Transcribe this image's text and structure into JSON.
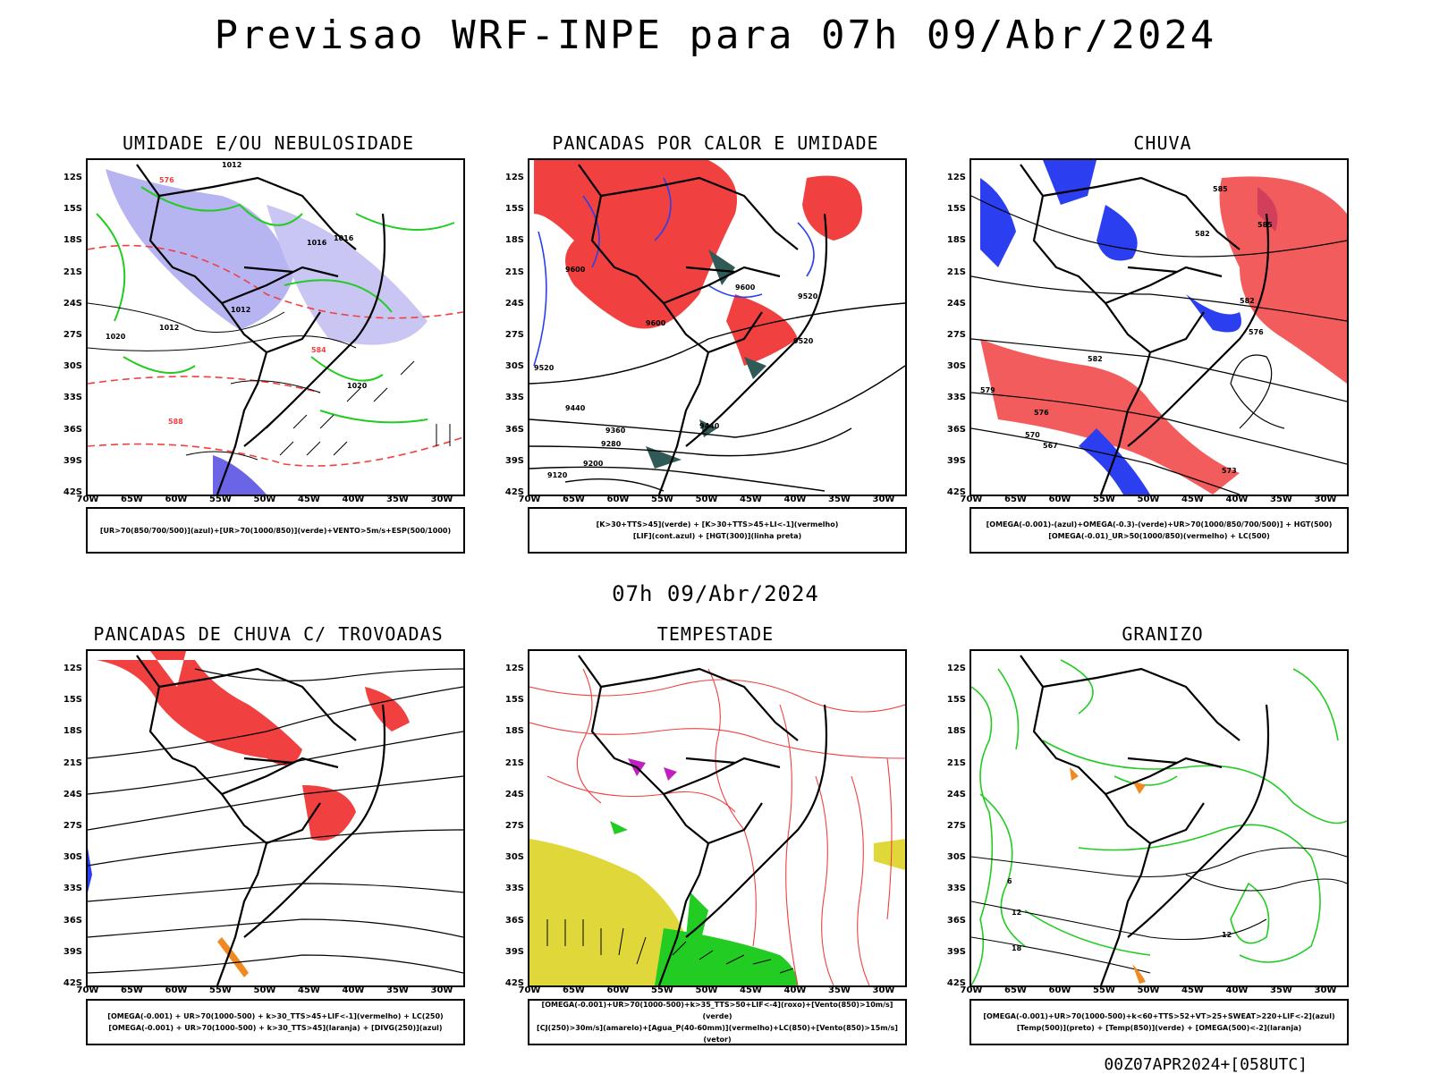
{
  "main_title": "Previsao WRF-INPE  para 07h 09/Abr/2024",
  "mid_label": "07h 09/Abr/2024",
  "footer": "00Z07APR2024+[058UTC]",
  "lat_ticks": [
    "12S",
    "15S",
    "18S",
    "21S",
    "24S",
    "27S",
    "30S",
    "33S",
    "36S",
    "39S",
    "42S"
  ],
  "lon_ticks": [
    "70W",
    "65W",
    "60W",
    "55W",
    "50W",
    "45W",
    "40W",
    "35W",
    "30W"
  ],
  "panels": [
    {
      "title": "UMIDADE E/OU NEBULOSIDADE",
      "legend": [
        "[UR>70(850/700/500)](azul)+[UR>70(1000/850)](verde)+VENTO>5m/s+ESP(500/1000)"
      ]
    },
    {
      "title": "PANCADAS POR CALOR E UMIDADE",
      "legend": [
        "[K>30+TTS>45](verde) + [K>30+TTS>45+LI<-1](vermelho)",
        "[LIF](cont.azul) + [HGT(300)](linha preta)"
      ]
    },
    {
      "title": "CHUVA",
      "legend": [
        "[OMEGA(-0.001)-(azul)+OMEGA(-0.3)-(verde)+UR>70(1000/850/700/500)] + HGT(500)",
        "[OMEGA(-0.01)_UR>50(1000/850)(vermelho) + LC(500)"
      ]
    },
    {
      "title": "PANCADAS DE CHUVA C/ TROVOADAS",
      "legend": [
        "[OMEGA(-0.001) + UR>70(1000-500) + k>30_TTS>45+LIF<-1](vermelho) + LC(250)",
        "[OMEGA(-0.001) + UR>70(1000-500) + k>30_TTS>45](laranja) + [DIVG(250)](azul)"
      ]
    },
    {
      "title": "TEMPESTADE",
      "legend": [
        "[OMEGA(-0.001)+UR>70(1000-500)+k>35_TTS>50+LIF<-4](roxo)+[Vento(850)>10m/s](verde)",
        "[CJ(250)>30m/s](amarelo)+[Agua_P(40-60mm)](vermelho)+LC(850)+[Vento(850)>15m/s](vetor)"
      ]
    },
    {
      "title": "GRANIZO",
      "legend": [
        "[OMEGA(-0.001)+UR>70(1000-500)+k<60+TTS>52+VT>25+SWEAT>220+LIF<-2](azul)",
        "[Temp(500)](preto) + [Temp(850)](verde) + [OMEGA(500)<-2](laranja)"
      ]
    }
  ],
  "contour_labels": {
    "p1": [
      "1012",
      "1016",
      "1012",
      "1016",
      "1012",
      "1020",
      "576",
      "584",
      "588",
      "1020"
    ],
    "p2": [
      "9600",
      "9600",
      "9600",
      "9520",
      "9520",
      "9440",
      "9440",
      "9360",
      "9280",
      "9200",
      "9120",
      "9520"
    ],
    "p3": [
      "585",
      "582",
      "579",
      "576",
      "573",
      "570",
      "567",
      "582",
      "585",
      "582",
      "576"
    ],
    "p6": [
      "12",
      "18",
      "6",
      "12"
    ]
  },
  "colors": {
    "blue": "#2b3ff0",
    "lightblue": "#a9a6f0",
    "green": "#22cc22",
    "red": "#f04040",
    "darkgreen": "#2f5a55",
    "yellow": "#e0d83a",
    "orange": "#f08a20",
    "purple": "#c020c0"
  }
}
